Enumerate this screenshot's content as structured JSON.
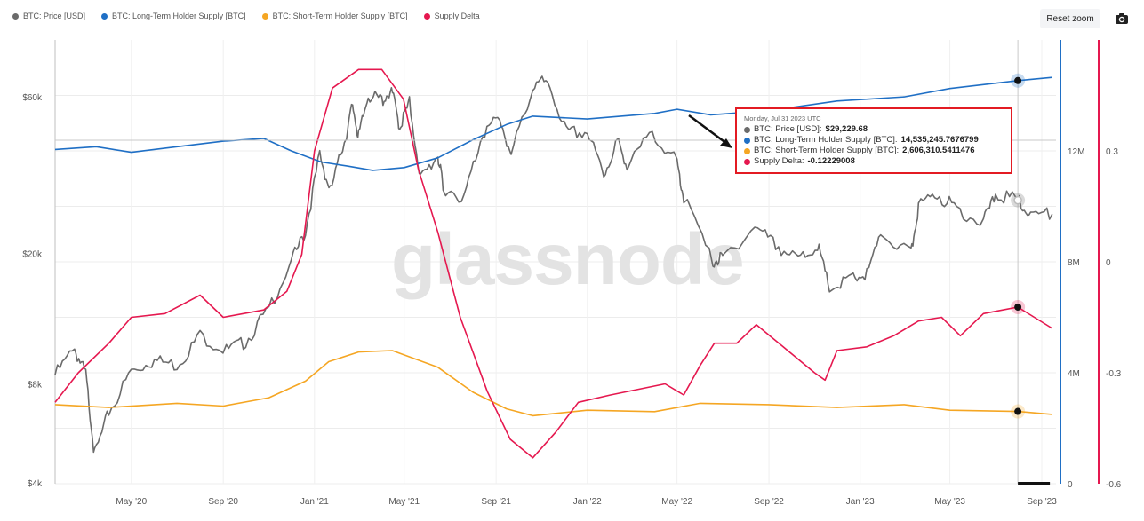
{
  "toolbar": {
    "reset_zoom_label": "Reset zoom",
    "camera_icon": "camera-icon"
  },
  "legend": [
    {
      "label": "BTC: Price [USD]",
      "color": "#6b6b6b"
    },
    {
      "label": "BTC: Long-Term Holder Supply [BTC]",
      "color": "#1f6fc5"
    },
    {
      "label": "BTC: Short-Term Holder Supply [BTC]",
      "color": "#f5a623"
    },
    {
      "label": "Supply Delta",
      "color": "#e5184f"
    }
  ],
  "watermark": "glassnode",
  "tooltip": {
    "date": "Monday, Jul 31 2023 UTC",
    "rows": [
      {
        "label": "BTC: Price [USD]:",
        "value": "$29,229.68",
        "color": "#6b6b6b"
      },
      {
        "label": "BTC: Long-Term Holder Supply [BTC]:",
        "value": "14,535,245.7676799",
        "color": "#1f6fc5"
      },
      {
        "label": "BTC: Short-Term Holder Supply [BTC]:",
        "value": "2,606,310.5411476",
        "color": "#f5a623"
      },
      {
        "label": "Supply Delta:",
        "value": "-0.12229008",
        "color": "#e5184f"
      }
    ]
  },
  "chart_data": {
    "type": "line",
    "x_ticks": [
      "May '20",
      "Sep '20",
      "Jan '21",
      "May '21",
      "Sep '21",
      "Jan '22",
      "May '22",
      "Sep '22",
      "Jan '23",
      "May '23",
      "Sep '23"
    ],
    "y_left_ticks": [
      "$60k",
      "$20k",
      "$8k",
      "$4k"
    ],
    "y_left_scale": "log",
    "y_mid_ticks": [
      "12M",
      "8M",
      "4M",
      "0"
    ],
    "y_right_ticks": [
      "0.3",
      "0",
      "-0.3",
      "-0.6"
    ],
    "x_range": [
      "2020-01-20",
      "2023-09-20"
    ],
    "ylim_price": [
      4000,
      90000
    ],
    "ylim_supply": [
      0,
      16000000
    ],
    "ylim_delta": [
      -0.6,
      0.6
    ],
    "hover_date": "2023-07-31",
    "series": [
      {
        "name": "BTC: Price [USD]",
        "axis": "price",
        "color": "#6b6b6b",
        "points": [
          [
            "2020-01-20",
            8600
          ],
          [
            "2020-02-15",
            10300
          ],
          [
            "2020-03-01",
            8600
          ],
          [
            "2020-03-13",
            4900
          ],
          [
            "2020-04-01",
            6600
          ],
          [
            "2020-05-01",
            8800
          ],
          [
            "2020-06-01",
            9500
          ],
          [
            "2020-07-01",
            9200
          ],
          [
            "2020-08-01",
            11300
          ],
          [
            "2020-09-05",
            10200
          ],
          [
            "2020-10-01",
            10800
          ],
          [
            "2020-11-01",
            13700
          ],
          [
            "2020-12-01",
            19000
          ],
          [
            "2020-12-20",
            23500
          ],
          [
            "2021-01-08",
            40500
          ],
          [
            "2021-01-22",
            31000
          ],
          [
            "2021-02-10",
            44000
          ],
          [
            "2021-02-21",
            57000
          ],
          [
            "2021-03-01",
            45500
          ],
          [
            "2021-03-14",
            61000
          ],
          [
            "2021-04-01",
            58800
          ],
          [
            "2021-04-14",
            63500
          ],
          [
            "2021-04-25",
            49000
          ],
          [
            "2021-05-08",
            58000
          ],
          [
            "2021-05-23",
            34000
          ],
          [
            "2021-06-15",
            40000
          ],
          [
            "2021-06-22",
            32000
          ],
          [
            "2021-07-20",
            29800
          ],
          [
            "2021-08-14",
            47000
          ],
          [
            "2021-09-06",
            52000
          ],
          [
            "2021-09-21",
            40000
          ],
          [
            "2021-10-20",
            65000
          ],
          [
            "2021-11-09",
            67500
          ],
          [
            "2021-12-04",
            47000
          ],
          [
            "2022-01-01",
            47000
          ],
          [
            "2022-01-23",
            35000
          ],
          [
            "2022-02-10",
            44000
          ],
          [
            "2022-02-25",
            37000
          ],
          [
            "2022-03-29",
            47500
          ],
          [
            "2022-05-01",
            38000
          ],
          [
            "2022-05-10",
            30000
          ],
          [
            "2022-06-18",
            19000
          ],
          [
            "2022-07-01",
            19500
          ],
          [
            "2022-08-13",
            24400
          ],
          [
            "2022-09-10",
            21500
          ],
          [
            "2022-10-10",
            19100
          ],
          [
            "2022-11-05",
            21300
          ],
          [
            "2022-11-21",
            15600
          ],
          [
            "2022-12-20",
            16800
          ],
          [
            "2023-01-10",
            17400
          ],
          [
            "2023-01-31",
            23100
          ],
          [
            "2023-03-10",
            20000
          ],
          [
            "2023-03-20",
            28000
          ],
          [
            "2023-04-14",
            30500
          ],
          [
            "2023-05-10",
            27500
          ],
          [
            "2023-06-15",
            25000
          ],
          [
            "2023-07-01",
            30500
          ],
          [
            "2023-07-31",
            29229.68
          ],
          [
            "2023-08-17",
            26400
          ],
          [
            "2023-09-15",
            26500
          ]
        ]
      },
      {
        "name": "BTC: Long-Term Holder Supply [BTC]",
        "axis": "supply",
        "color": "#1f6fc5",
        "points": [
          [
            "2020-01-20",
            12050000
          ],
          [
            "2020-03-15",
            12150000
          ],
          [
            "2020-05-01",
            11950000
          ],
          [
            "2020-07-01",
            12150000
          ],
          [
            "2020-09-01",
            12350000
          ],
          [
            "2020-10-25",
            12450000
          ],
          [
            "2020-12-01",
            12000000
          ],
          [
            "2021-01-10",
            11600000
          ],
          [
            "2021-02-15",
            11450000
          ],
          [
            "2021-03-20",
            11300000
          ],
          [
            "2021-05-01",
            11400000
          ],
          [
            "2021-06-15",
            11750000
          ],
          [
            "2021-08-01",
            12400000
          ],
          [
            "2021-09-15",
            12950000
          ],
          [
            "2021-10-20",
            13250000
          ],
          [
            "2022-01-01",
            13150000
          ],
          [
            "2022-04-01",
            13350000
          ],
          [
            "2022-05-01",
            13500000
          ],
          [
            "2022-06-15",
            13300000
          ],
          [
            "2022-09-01",
            13450000
          ],
          [
            "2022-12-01",
            13800000
          ],
          [
            "2023-03-01",
            13950000
          ],
          [
            "2023-05-01",
            14250000
          ],
          [
            "2023-07-31",
            14535245.77
          ],
          [
            "2023-09-15",
            14650000
          ]
        ]
      },
      {
        "name": "BTC: Short-Term Holder Supply [BTC]",
        "axis": "supply",
        "color": "#f5a623",
        "points": [
          [
            "2020-01-20",
            2850000
          ],
          [
            "2020-04-01",
            2750000
          ],
          [
            "2020-07-01",
            2900000
          ],
          [
            "2020-09-01",
            2800000
          ],
          [
            "2020-11-01",
            3100000
          ],
          [
            "2020-12-20",
            3700000
          ],
          [
            "2021-01-20",
            4400000
          ],
          [
            "2021-03-01",
            4750000
          ],
          [
            "2021-04-15",
            4800000
          ],
          [
            "2021-06-15",
            4200000
          ],
          [
            "2021-08-01",
            3300000
          ],
          [
            "2021-09-15",
            2700000
          ],
          [
            "2021-10-20",
            2450000
          ],
          [
            "2022-01-01",
            2650000
          ],
          [
            "2022-04-01",
            2600000
          ],
          [
            "2022-06-01",
            2900000
          ],
          [
            "2022-09-01",
            2850000
          ],
          [
            "2022-12-01",
            2750000
          ],
          [
            "2023-03-01",
            2850000
          ],
          [
            "2023-05-01",
            2650000
          ],
          [
            "2023-07-31",
            2606310.54
          ],
          [
            "2023-09-15",
            2500000
          ]
        ]
      },
      {
        "name": "Supply Delta",
        "axis": "delta",
        "color": "#e5184f",
        "points": [
          [
            "2020-01-20",
            -0.38
          ],
          [
            "2020-02-20",
            -0.3
          ],
          [
            "2020-04-01",
            -0.22
          ],
          [
            "2020-05-01",
            -0.15
          ],
          [
            "2020-06-15",
            -0.14
          ],
          [
            "2020-08-01",
            -0.09
          ],
          [
            "2020-09-01",
            -0.15
          ],
          [
            "2020-10-25",
            -0.13
          ],
          [
            "2020-11-25",
            -0.08
          ],
          [
            "2020-12-15",
            0.02
          ],
          [
            "2021-01-01",
            0.3
          ],
          [
            "2021-01-25",
            0.47
          ],
          [
            "2021-03-01",
            0.52
          ],
          [
            "2021-04-01",
            0.52
          ],
          [
            "2021-04-30",
            0.44
          ],
          [
            "2021-05-20",
            0.25
          ],
          [
            "2021-06-15",
            0.08
          ],
          [
            "2021-07-15",
            -0.15
          ],
          [
            "2021-08-20",
            -0.35
          ],
          [
            "2021-09-20",
            -0.48
          ],
          [
            "2021-10-20",
            -0.53
          ],
          [
            "2021-11-20",
            -0.46
          ],
          [
            "2021-12-20",
            -0.38
          ],
          [
            "2022-02-01",
            -0.36
          ],
          [
            "2022-04-15",
            -0.33
          ],
          [
            "2022-05-10",
            -0.36
          ],
          [
            "2022-06-01",
            -0.28
          ],
          [
            "2022-06-20",
            -0.22
          ],
          [
            "2022-07-20",
            -0.22
          ],
          [
            "2022-08-15",
            -0.17
          ],
          [
            "2022-09-20",
            -0.23
          ],
          [
            "2022-11-01",
            -0.3
          ],
          [
            "2022-11-15",
            -0.32
          ],
          [
            "2022-12-01",
            -0.24
          ],
          [
            "2023-01-10",
            -0.23
          ],
          [
            "2023-02-15",
            -0.2
          ],
          [
            "2023-03-20",
            -0.16
          ],
          [
            "2023-04-20",
            -0.15
          ],
          [
            "2023-05-15",
            -0.2
          ],
          [
            "2023-06-15",
            -0.14
          ],
          [
            "2023-07-31",
            -0.12229008
          ],
          [
            "2023-09-15",
            -0.18
          ]
        ]
      }
    ]
  }
}
